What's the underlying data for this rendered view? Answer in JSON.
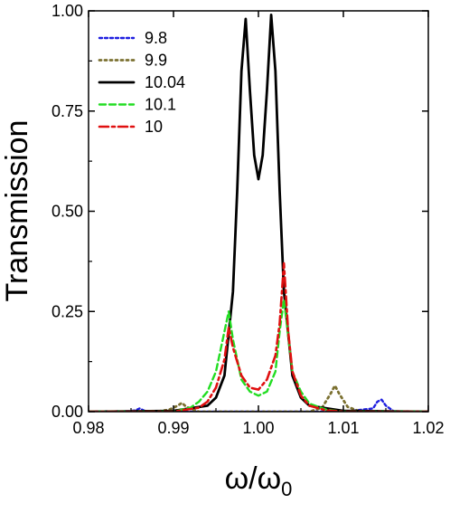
{
  "chart_data": {
    "type": "line",
    "title": "",
    "xlabel": "ω/ω0",
    "xlabel_main": "ω/ω",
    "xlabel_sub": "0",
    "ylabel": "Transmission",
    "xlim": [
      0.98,
      1.02
    ],
    "ylim": [
      0.0,
      1.0
    ],
    "xticks": [
      "0.98",
      "0.99",
      "1.00",
      "1.01",
      "1.02"
    ],
    "yticks": [
      "0.00",
      "0.25",
      "0.50",
      "0.75",
      "1.00"
    ],
    "grid": false,
    "legend_position": "top-left",
    "series": [
      {
        "name": "9.8",
        "color": "#1f1fe0",
        "dash": "dotted-fine",
        "x": [
          0.98,
          0.984,
          0.9855,
          0.986,
          0.9865,
          0.987,
          0.99,
          1.0,
          1.01,
          1.0135,
          1.014,
          1.0145,
          1.015,
          1.016,
          1.02
        ],
        "y": [
          0.0,
          0.0,
          0.003,
          0.008,
          0.003,
          0.0,
          0.0,
          0.0,
          0.0,
          0.008,
          0.025,
          0.03,
          0.015,
          0.0,
          0.0
        ]
      },
      {
        "name": "9.9",
        "color": "#7b7030",
        "dash": "dotted",
        "x": [
          0.98,
          0.988,
          0.9895,
          0.9905,
          0.991,
          0.9915,
          0.993,
          1.0,
          1.006,
          1.0075,
          1.0085,
          1.009,
          1.0095,
          1.0105,
          1.012,
          1.02
        ],
        "y": [
          0.0,
          0.0,
          0.005,
          0.015,
          0.022,
          0.012,
          0.0,
          0.0,
          0.0,
          0.01,
          0.045,
          0.065,
          0.045,
          0.012,
          0.0,
          0.0
        ]
      },
      {
        "name": "10.04",
        "color": "#000000",
        "dash": "solid",
        "x": [
          0.98,
          0.99,
          0.994,
          0.995,
          0.996,
          0.997,
          0.9975,
          0.998,
          0.9985,
          0.999,
          0.9995,
          1.0,
          1.0005,
          1.001,
          1.0015,
          1.002,
          1.0025,
          1.003,
          1.004,
          1.005,
          1.006,
          1.01,
          1.02
        ],
        "y": [
          0.0,
          0.002,
          0.015,
          0.035,
          0.09,
          0.3,
          0.55,
          0.85,
          0.98,
          0.8,
          0.64,
          0.58,
          0.64,
          0.8,
          0.99,
          0.85,
          0.55,
          0.3,
          0.09,
          0.035,
          0.015,
          0.002,
          0.0
        ]
      },
      {
        "name": "10.1",
        "color": "#22dd22",
        "dash": "dashed",
        "x": [
          0.98,
          0.99,
          0.992,
          0.993,
          0.994,
          0.995,
          0.996,
          0.9965,
          0.997,
          0.998,
          0.999,
          1.0,
          1.001,
          1.002,
          1.0025,
          1.003,
          1.004,
          1.005,
          1.006,
          1.008,
          1.01,
          1.02
        ],
        "y": [
          0.0,
          0.0,
          0.01,
          0.025,
          0.05,
          0.1,
          0.2,
          0.25,
          0.18,
          0.08,
          0.05,
          0.04,
          0.05,
          0.1,
          0.2,
          0.28,
          0.1,
          0.05,
          0.02,
          0.005,
          0.0,
          0.0
        ]
      },
      {
        "name": "10",
        "color": "#e01010",
        "dash": "dash-dot",
        "x": [
          0.98,
          0.99,
          0.993,
          0.994,
          0.995,
          0.996,
          0.9965,
          0.997,
          0.998,
          0.999,
          1.0,
          1.001,
          1.002,
          1.0025,
          1.003,
          1.0035,
          1.004,
          1.005,
          1.006,
          1.008,
          1.01,
          1.02
        ],
        "y": [
          0.0,
          0.0,
          0.01,
          0.025,
          0.06,
          0.13,
          0.21,
          0.16,
          0.09,
          0.06,
          0.055,
          0.08,
          0.14,
          0.22,
          0.37,
          0.2,
          0.1,
          0.04,
          0.015,
          0.003,
          0.0,
          0.0
        ]
      }
    ]
  }
}
